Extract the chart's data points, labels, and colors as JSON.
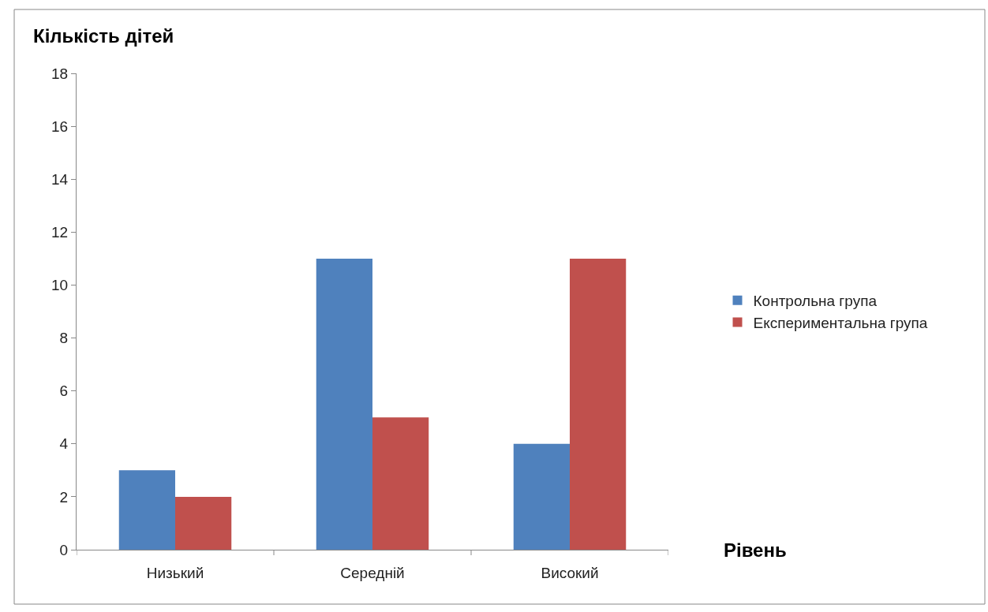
{
  "chart_data": {
    "type": "bar",
    "ylabel": "Кількість дітей",
    "xlabel": "Рівень",
    "categories": [
      "Низький",
      "Середній",
      "Високий"
    ],
    "series": [
      {
        "name": "Контрольна група",
        "color": "#4f81bd",
        "values": [
          3,
          11,
          4
        ]
      },
      {
        "name": "Експериментальна група",
        "color": "#c0504d",
        "values": [
          2,
          5,
          11
        ]
      }
    ],
    "ylim": [
      0,
      18
    ],
    "yticks": [
      0,
      2,
      4,
      6,
      8,
      10,
      12,
      14,
      16,
      18
    ],
    "legend": "right"
  }
}
